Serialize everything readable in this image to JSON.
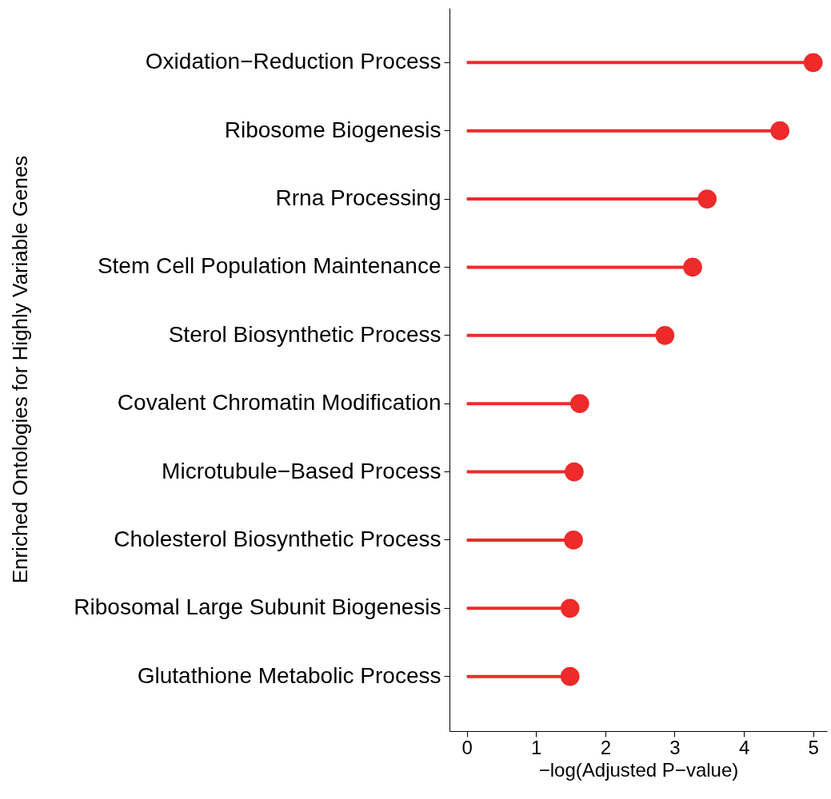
{
  "chart_data": {
    "type": "lollipop",
    "orientation": "horizontal",
    "xlabel": "−log(Adjusted P−value)",
    "ylabel": "Enriched Ontologies for Highly Variable Genes",
    "categories": [
      "Oxidation−Reduction Process",
      "Ribosome Biogenesis",
      "Rrna Processing",
      "Stem Cell Population Maintenance",
      "Sterol Biosynthetic Process",
      "Covalent Chromatin Modification",
      "Microtubule−Based Process",
      "Cholesterol Biosynthetic Process",
      "Ribosomal Large Subunit Biogenesis",
      "Glutathione Metabolic Process"
    ],
    "values": [
      5.0,
      4.52,
      3.47,
      3.26,
      2.86,
      1.63,
      1.55,
      1.54,
      1.49,
      1.49
    ],
    "color": "#ee2a2a",
    "marker": "circle",
    "grid": false,
    "xlim": [
      -0.25,
      5.2
    ],
    "xticks": [
      0,
      1,
      2,
      3,
      4,
      5
    ]
  }
}
